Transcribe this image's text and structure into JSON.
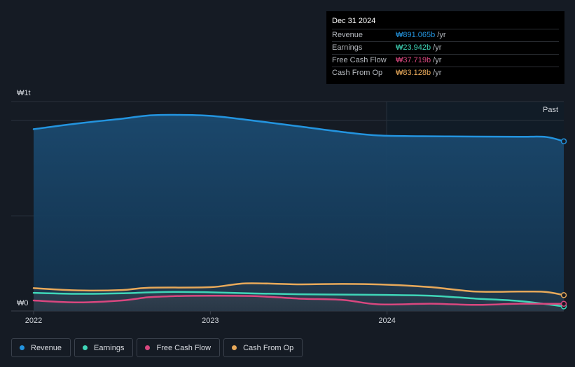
{
  "chart_data": {
    "type": "area",
    "y_label_top": "₩1t",
    "y_label_bottom": "₩0",
    "ylim": [
      0,
      1100
    ],
    "past_label": "Past",
    "x_ticks": [
      "2022",
      "2023",
      "2024"
    ],
    "series": [
      {
        "name": "Revenue",
        "color": "#2394df",
        "points": [
          [
            2022.0,
            955
          ],
          [
            2022.25,
            985
          ],
          [
            2022.5,
            1010
          ],
          [
            2022.65,
            1027
          ],
          [
            2022.8,
            1030
          ],
          [
            2023.0,
            1025
          ],
          [
            2023.2,
            1005
          ],
          [
            2023.5,
            970
          ],
          [
            2023.75,
            940
          ],
          [
            2023.95,
            922
          ],
          [
            2024.2,
            918
          ],
          [
            2024.5,
            916
          ],
          [
            2024.75,
            915
          ],
          [
            2024.9,
            914
          ],
          [
            2025.0,
            891.065
          ]
        ]
      },
      {
        "name": "Earnings",
        "color": "#3fd6b8",
        "points": [
          [
            2022.0,
            95
          ],
          [
            2022.25,
            90
          ],
          [
            2022.5,
            93
          ],
          [
            2022.75,
            100
          ],
          [
            2023.0,
            98
          ],
          [
            2023.25,
            92
          ],
          [
            2023.5,
            88
          ],
          [
            2023.75,
            86
          ],
          [
            2024.0,
            84
          ],
          [
            2024.25,
            80
          ],
          [
            2024.5,
            65
          ],
          [
            2024.75,
            52
          ],
          [
            2025.0,
            23.942
          ]
        ]
      },
      {
        "name": "Free Cash Flow",
        "color": "#d9477f",
        "points": [
          [
            2022.0,
            55
          ],
          [
            2022.25,
            45
          ],
          [
            2022.5,
            55
          ],
          [
            2022.65,
            72
          ],
          [
            2022.8,
            78
          ],
          [
            2023.0,
            80
          ],
          [
            2023.25,
            78
          ],
          [
            2023.5,
            65
          ],
          [
            2023.75,
            58
          ],
          [
            2023.95,
            35
          ],
          [
            2024.25,
            38
          ],
          [
            2024.5,
            32
          ],
          [
            2024.75,
            38
          ],
          [
            2025.0,
            37.719
          ]
        ]
      },
      {
        "name": "Cash From Op",
        "color": "#e8a95a",
        "points": [
          [
            2022.0,
            120
          ],
          [
            2022.25,
            108
          ],
          [
            2022.5,
            110
          ],
          [
            2022.65,
            122
          ],
          [
            2023.0,
            125
          ],
          [
            2023.2,
            145
          ],
          [
            2023.5,
            140
          ],
          [
            2023.75,
            142
          ],
          [
            2024.0,
            138
          ],
          [
            2024.25,
            125
          ],
          [
            2024.5,
            102
          ],
          [
            2024.75,
            102
          ],
          [
            2024.9,
            100
          ],
          [
            2025.0,
            83.128
          ]
        ]
      }
    ]
  },
  "tooltip": {
    "date": "Dec 31 2024",
    "rows": [
      {
        "label": "Revenue",
        "value": "₩891.065b",
        "unit": "/yr",
        "color": "#2394df"
      },
      {
        "label": "Earnings",
        "value": "₩23.942b",
        "unit": "/yr",
        "color": "#3fd6b8"
      },
      {
        "label": "Free Cash Flow",
        "value": "₩37.719b",
        "unit": "/yr",
        "color": "#d9477f"
      },
      {
        "label": "Cash From Op",
        "value": "₩83.128b",
        "unit": "/yr",
        "color": "#e8a95a"
      }
    ]
  },
  "legend": [
    {
      "label": "Revenue",
      "color": "#2394df"
    },
    {
      "label": "Earnings",
      "color": "#3fd6b8"
    },
    {
      "label": "Free Cash Flow",
      "color": "#d9477f"
    },
    {
      "label": "Cash From Op",
      "color": "#e8a95a"
    }
  ]
}
